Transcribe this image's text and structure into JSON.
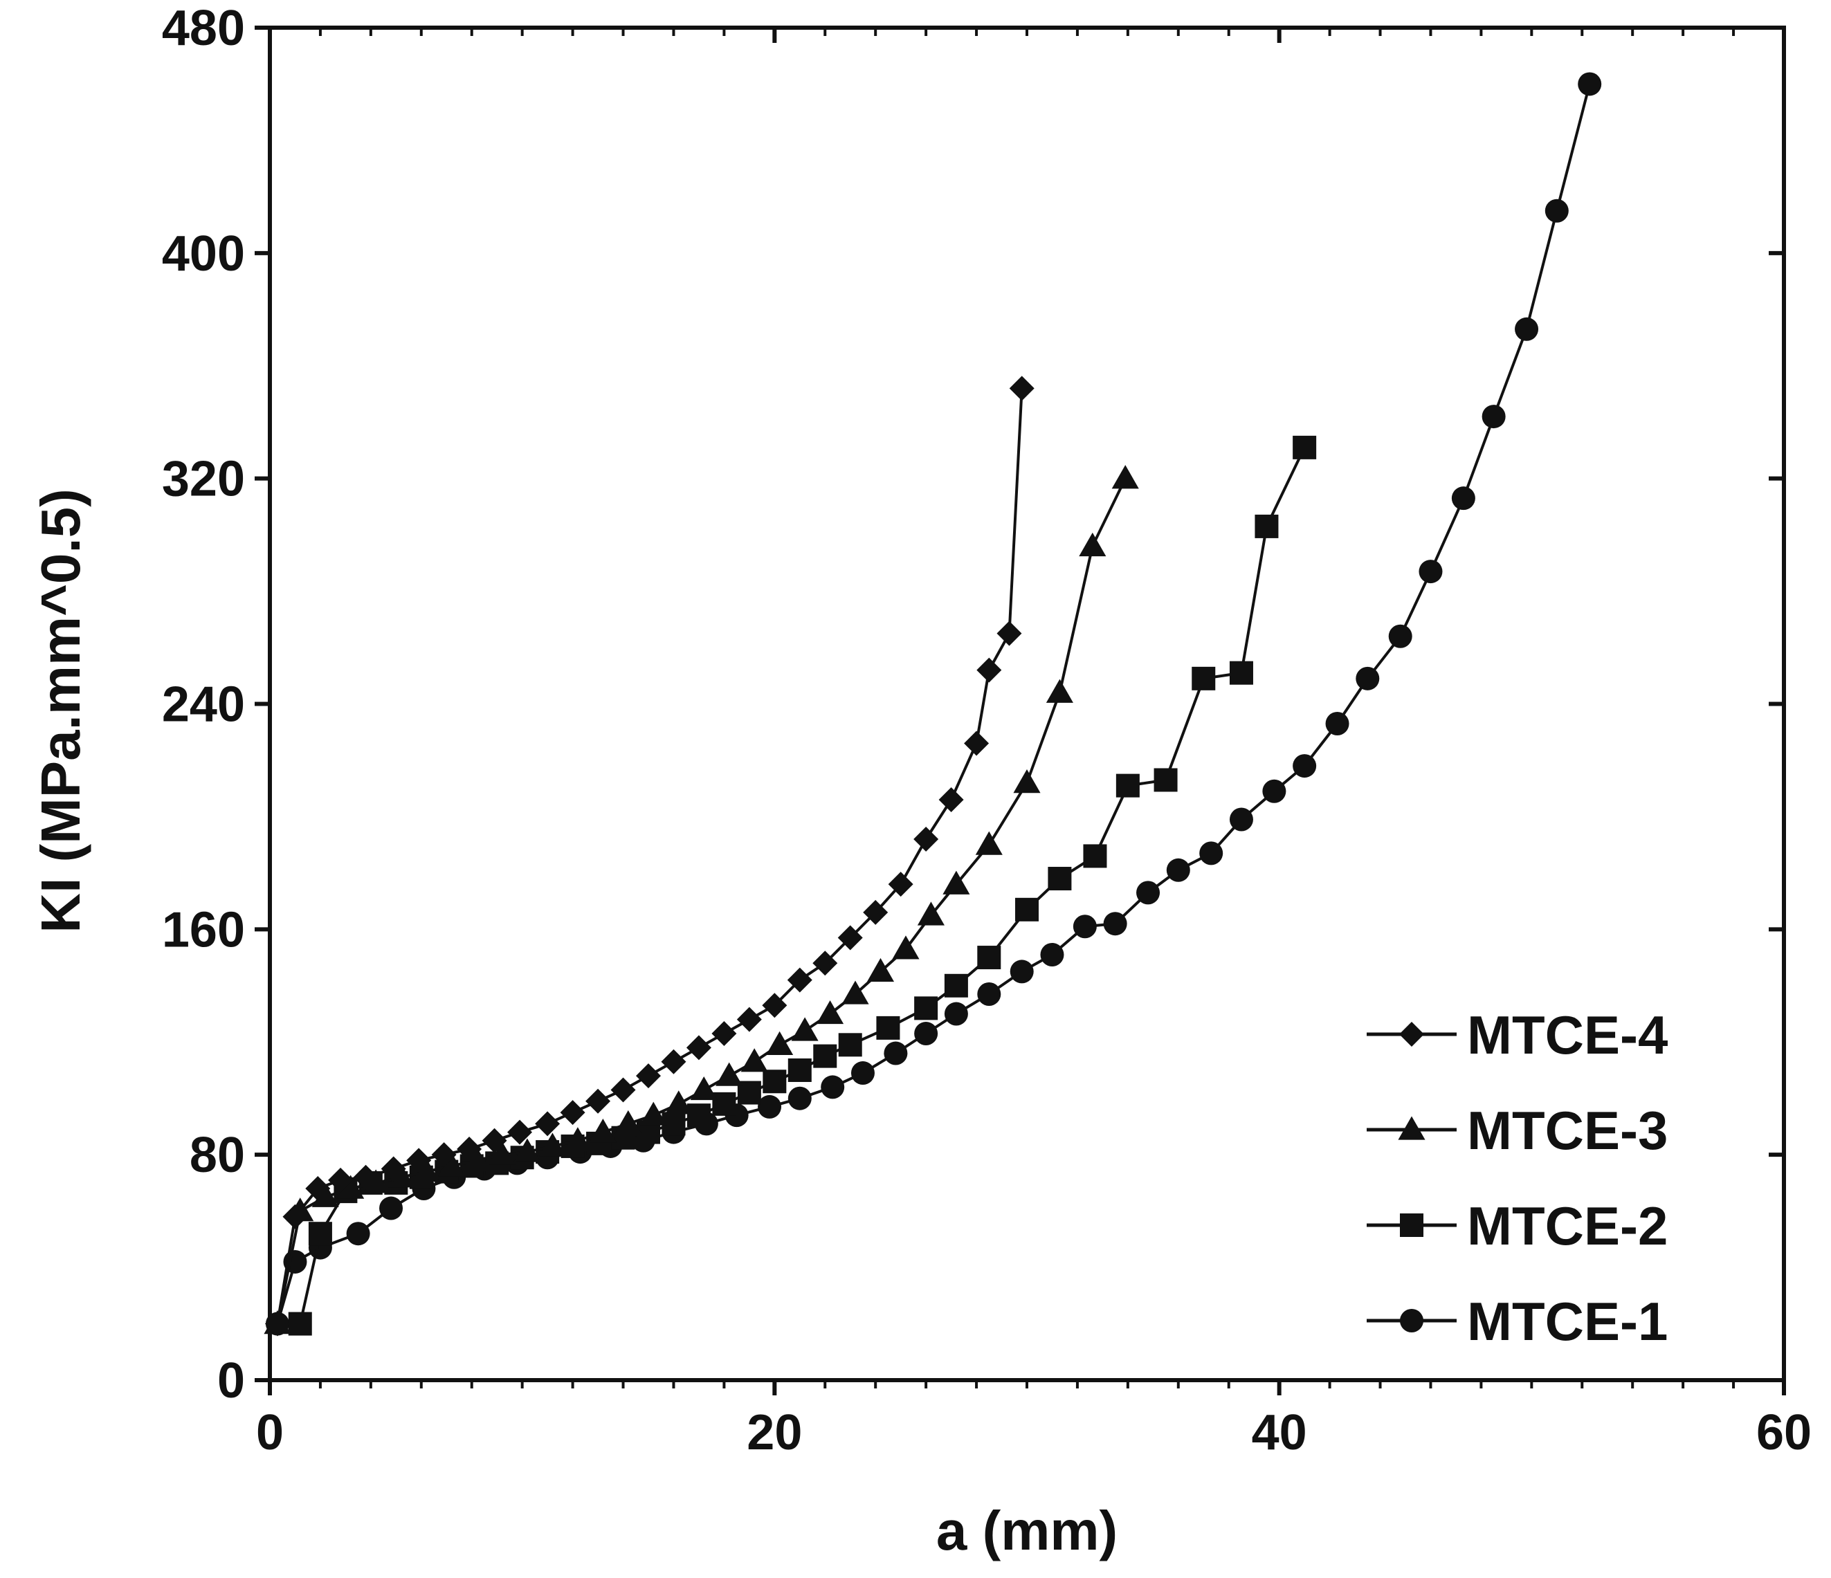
{
  "chart_data": {
    "type": "line",
    "title": "",
    "xlabel": "a (mm)",
    "ylabel": "KI (MPa.mm^0.5)",
    "xlim": [
      0,
      60
    ],
    "ylim": [
      0,
      480
    ],
    "xticks": [
      0,
      20,
      40,
      60
    ],
    "yticks": [
      0,
      80,
      160,
      240,
      320,
      400,
      480
    ],
    "legend_position": "bottom-right",
    "colors": {
      "line": "#111111",
      "background": "#ffffff"
    },
    "series": [
      {
        "name": "MTCE-4",
        "marker": "diamond",
        "x": [
          0.3,
          1.0,
          1.9,
          2.8,
          3.8,
          4.9,
          5.9,
          6.9,
          7.9,
          8.9,
          9.9,
          11.0,
          12.0,
          13.0,
          14.0,
          15.0,
          16.0,
          17.0,
          18.0,
          19.0,
          20.0,
          21.0,
          22.0,
          23.0,
          24.0,
          25.0,
          26.0,
          27.0,
          28.0,
          28.5,
          29.3,
          29.8
        ],
        "y": [
          20,
          58,
          68,
          71,
          72,
          75,
          78,
          80,
          82,
          85,
          88,
          91,
          95,
          99,
          103,
          108,
          113,
          118,
          123,
          128,
          133,
          142,
          148,
          157,
          166,
          176,
          192,
          206,
          226,
          252,
          265,
          352
        ]
      },
      {
        "name": "MTCE-3",
        "marker": "triangle",
        "x": [
          0.3,
          1.2,
          2.2,
          3.2,
          4.2,
          5.2,
          6.2,
          7.2,
          8.2,
          9.2,
          10.2,
          11.2,
          12.2,
          13.2,
          14.2,
          15.2,
          16.2,
          17.2,
          18.2,
          19.2,
          20.2,
          21.2,
          22.2,
          23.2,
          24.2,
          25.2,
          26.2,
          27.2,
          28.5,
          30.0,
          31.3,
          32.6,
          33.9
        ],
        "y": [
          20,
          60,
          65,
          68,
          70,
          72,
          74,
          76,
          78,
          80,
          81,
          83,
          85,
          88,
          91,
          94,
          98,
          103,
          108,
          113,
          119,
          124,
          130,
          137,
          145,
          153,
          165,
          176,
          190,
          212,
          244,
          296,
          320
        ]
      },
      {
        "name": "MTCE-2",
        "marker": "square",
        "x": [
          1.2,
          2.0,
          3.0,
          4.0,
          5.0,
          6.0,
          7.0,
          8.0,
          9.0,
          10.0,
          11.0,
          12.0,
          13.0,
          14.0,
          15.0,
          16.0,
          17.0,
          18.0,
          19.0,
          20.0,
          21.0,
          22.0,
          23.0,
          24.5,
          26.0,
          27.2,
          28.5,
          30.0,
          31.3,
          32.7,
          34.0,
          35.5,
          37.0,
          38.5,
          39.5,
          41.0
        ],
        "y": [
          20,
          52,
          67,
          70,
          70,
          72,
          74,
          76,
          77,
          79,
          81,
          83,
          84,
          86,
          88,
          91,
          94,
          98,
          102,
          106,
          110,
          115,
          119,
          125,
          132,
          140,
          150,
          167,
          178,
          186,
          211,
          213,
          249,
          251,
          303,
          331
        ]
      },
      {
        "name": "MTCE-1",
        "marker": "circle",
        "x": [
          0.3,
          1.0,
          2.0,
          3.5,
          4.8,
          6.1,
          7.3,
          8.5,
          9.8,
          11.0,
          12.3,
          13.5,
          14.8,
          16.0,
          17.3,
          18.5,
          19.8,
          21.0,
          22.3,
          23.5,
          24.8,
          26.0,
          27.2,
          28.5,
          29.8,
          31.0,
          32.3,
          33.5,
          34.8,
          36.0,
          37.3,
          38.5,
          39.8,
          41.0,
          42.3,
          43.5,
          44.8,
          46.0,
          47.3,
          48.5,
          49.8,
          51.0,
          52.3
        ],
        "y": [
          20,
          42,
          47,
          52,
          61,
          68,
          72,
          75,
          77,
          79,
          81,
          83,
          85,
          88,
          91,
          94,
          97,
          100,
          104,
          109,
          116,
          123,
          130,
          137,
          145,
          151,
          161,
          162,
          173,
          181,
          187,
          199,
          209,
          218,
          233,
          249,
          264,
          287,
          313,
          342,
          373,
          415,
          460
        ]
      }
    ]
  }
}
